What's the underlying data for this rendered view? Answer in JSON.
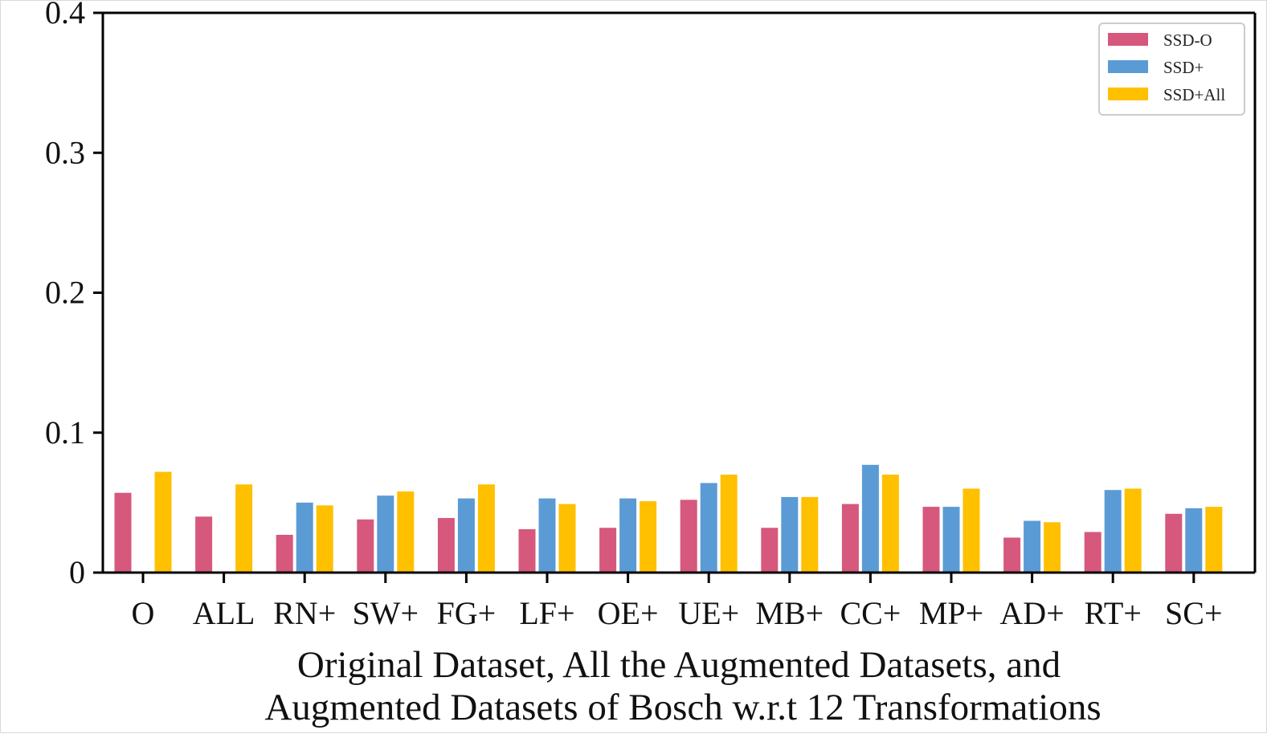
{
  "chart_data": {
    "type": "bar",
    "title": "",
    "xlabel_lines": [
      "Original Dataset, All the Augmented Datasets, and",
      "Augmented Datasets of Bosch w.r.t 12 Transformations"
    ],
    "ylabel": "",
    "ylim": [
      0,
      0.4
    ],
    "yticks": [
      0,
      0.1,
      0.2,
      0.3,
      0.4
    ],
    "ytick_labels": [
      "0",
      "0.1",
      "0.2",
      "0.3",
      "0.4"
    ],
    "grid": false,
    "legend_position": "top-right",
    "categories": [
      "O",
      "ALL",
      "RN+",
      "SW+",
      "FG+",
      "LF+",
      "OE+",
      "UE+",
      "MB+",
      "CC+",
      "MP+",
      "AD+",
      "RT+",
      "SC+"
    ],
    "series": [
      {
        "name": "SSD-O",
        "color": "#d6587d",
        "values": [
          0.057,
          0.04,
          0.027,
          0.038,
          0.039,
          0.031,
          0.032,
          0.052,
          0.032,
          0.049,
          0.047,
          0.025,
          0.029,
          0.042
        ]
      },
      {
        "name": "SSD+",
        "color": "#5b9bd5",
        "values": [
          null,
          null,
          0.05,
          0.055,
          0.053,
          0.053,
          0.053,
          0.064,
          0.054,
          0.077,
          0.047,
          0.037,
          0.059,
          0.046
        ]
      },
      {
        "name": "SSD+All",
        "color": "#ffc000",
        "values": [
          0.072,
          0.063,
          0.048,
          0.058,
          0.063,
          0.049,
          0.051,
          0.07,
          0.054,
          0.07,
          0.06,
          0.036,
          0.06,
          0.047
        ]
      }
    ]
  }
}
